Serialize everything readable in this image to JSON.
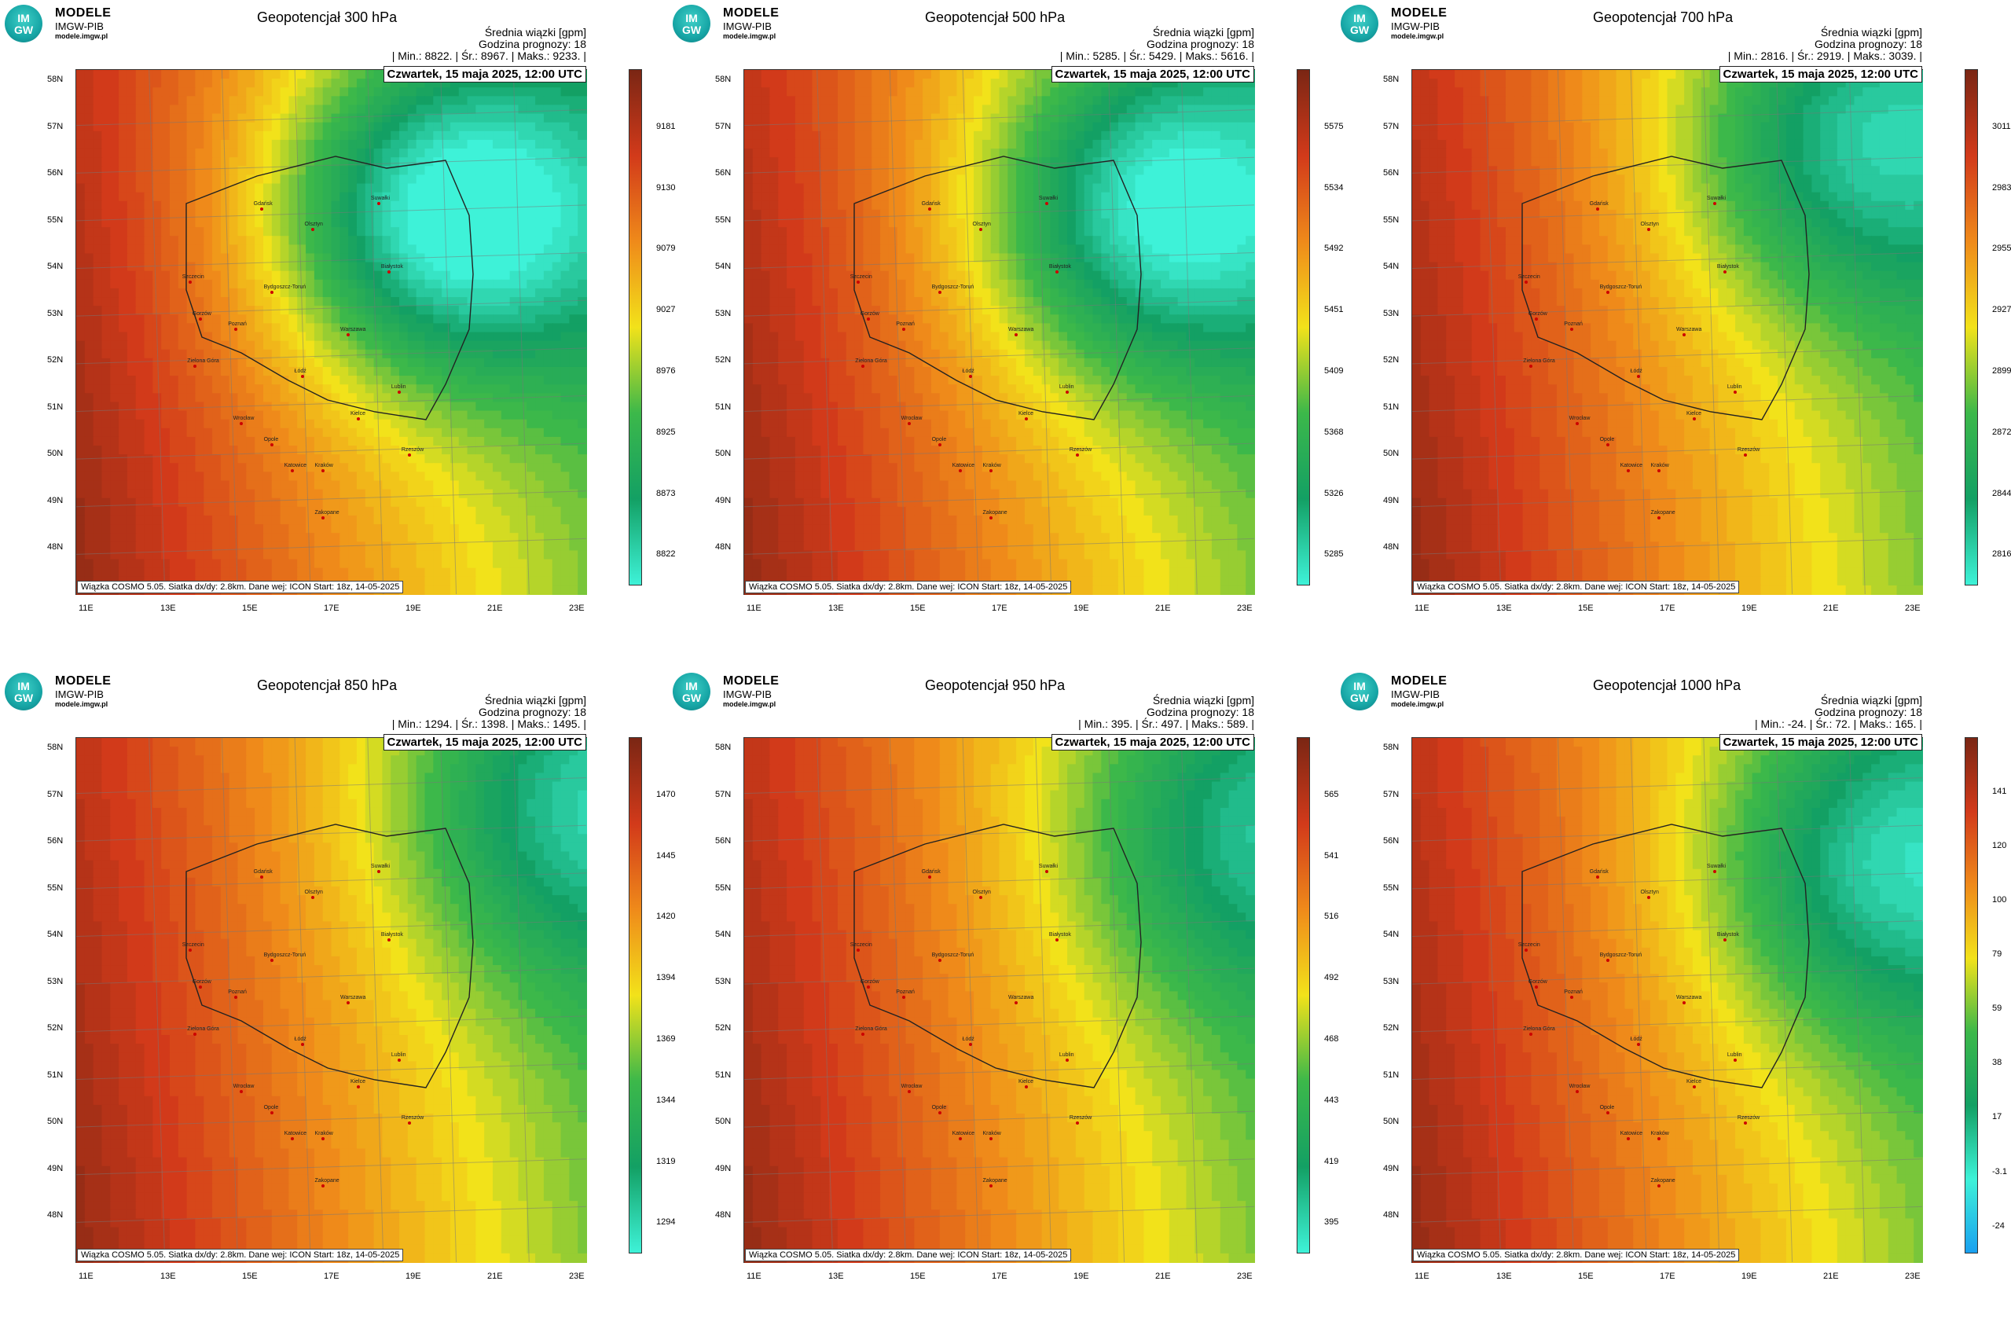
{
  "branding": {
    "name": "MODELE",
    "org": "IMGW-PIB",
    "url": "modele.imgw.pl",
    "logo_top": "IM",
    "logo_bottom": "GW"
  },
  "common": {
    "info_line1": "Średnia wiązki [gpm]",
    "info_line2": "Godzina prognozy: 18",
    "date": "Czwartek, 15 maja 2025, 12:00 UTC",
    "footer": "Wiązka COSMO 5.05. Siatka dx/dy: 2.8km. Dane wej: ICON Start: 18z, 14-05-2025",
    "lat_labels": [
      "58N",
      "57N",
      "56N",
      "55N",
      "54N",
      "53N",
      "52N",
      "51N",
      "50N",
      "49N",
      "48N"
    ],
    "lon_labels": [
      "11E",
      "13E",
      "15E",
      "17E",
      "19E",
      "21E",
      "23E"
    ],
    "cities": [
      "Gdańsk",
      "Olsztyn",
      "Suwałki",
      "Szczecin",
      "Białystok",
      "Bydgoszcz-Toruń",
      "Gorzów",
      "Poznań",
      "Warszawa",
      "Zielona Góra",
      "Łódź",
      "Lublin",
      "Wrocław",
      "Kielce",
      "Opole",
      "Rzeszów",
      "Katowice",
      "Kraków",
      "Zakopane"
    ],
    "colors": {
      "dark": "#7a2614",
      "red": "#d23a1a",
      "orange": "#ef8a1a",
      "yellow": "#f2e21a",
      "green": "#3cb84a",
      "dkgreen": "#13a064",
      "cyan": "#3ef2d8",
      "blue": "#19a0f0"
    }
  },
  "panels": [
    {
      "title": "Geopotencjał 300 hPa",
      "stats": "| Min.:  8822. | Śr.:  8967. | Maks.:  9233. |",
      "colorbar": [
        "9181",
        "9130",
        "9079",
        "9027",
        "8976",
        "8925",
        "8873",
        "8822"
      ],
      "field": {
        "low_center": [
          0.72,
          0.28
        ],
        "low_strength": 1.0,
        "gradient": "west-high"
      }
    },
    {
      "title": "Geopotencjał 500 hPa",
      "stats": "| Min.:  5285. | Śr.:  5429. | Maks.:  5616. |",
      "colorbar": [
        "5575",
        "5534",
        "5492",
        "5451",
        "5409",
        "5368",
        "5326",
        "5285"
      ],
      "field": {
        "low_center": [
          0.8,
          0.27
        ],
        "low_strength": 0.85,
        "gradient": "west-high"
      }
    },
    {
      "title": "Geopotencjał 700 hPa",
      "stats": "| Min.:  2816. | Śr.:  2919. | Maks.:  3039. |",
      "colorbar": [
        "3011",
        "2983",
        "2955",
        "2927",
        "2899",
        "2872",
        "2844",
        "2816"
      ],
      "field": {
        "low_center": [
          0.85,
          0.15
        ],
        "low_strength": 0.6,
        "gradient": "west-high"
      }
    },
    {
      "title": "Geopotencjał 850 hPa",
      "stats": "| Min.:  1294. | Śr.:  1398. | Maks.:  1495. |",
      "colorbar": [
        "1470",
        "1445",
        "1420",
        "1394",
        "1369",
        "1344",
        "1319",
        "1294"
      ],
      "field": {
        "low_center": [
          0.95,
          0.15
        ],
        "low_strength": 0.5,
        "gradient": "west-high"
      }
    },
    {
      "title": "Geopotencjał 950 hPa",
      "stats": "| Min.:   395. | Śr.:   497. | Maks.:   589. |",
      "colorbar": [
        "565",
        "541",
        "516",
        "492",
        "468",
        "443",
        "419",
        "395"
      ],
      "field": {
        "low_center": [
          0.95,
          0.2
        ],
        "low_strength": 0.45,
        "gradient": "west-high"
      }
    },
    {
      "title": "Geopotencjał 1000 hPa",
      "stats": "| Min.:   -24. | Śr.:    72. | Maks.:   165. |",
      "colorbar": [
        "141",
        "120",
        "100",
        "79",
        "59",
        "38",
        "17",
        "-3.1",
        "-24"
      ],
      "field": {
        "low_center": [
          0.9,
          0.25
        ],
        "low_strength": 0.6,
        "gradient": "west-high"
      }
    }
  ]
}
